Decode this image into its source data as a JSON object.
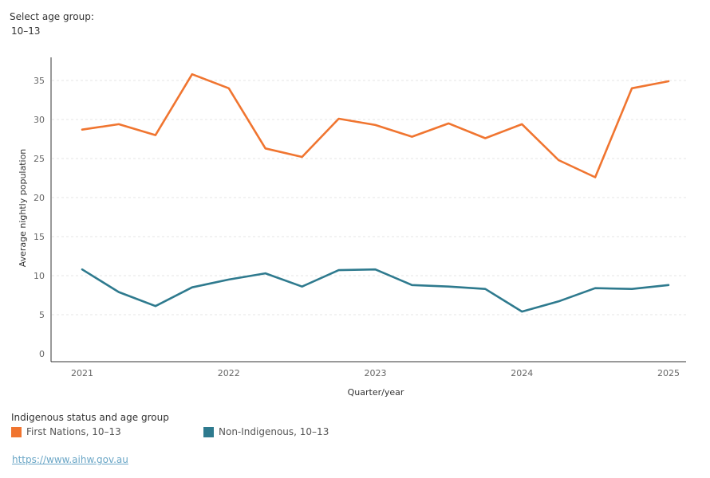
{
  "filter": {
    "label": "Select age group:",
    "value": "10–13"
  },
  "chart_data": {
    "type": "line",
    "xlabel": "Quarter/year",
    "ylabel": "Average nightly population",
    "ylim": [
      0,
      37
    ],
    "yticks": [
      0,
      5,
      10,
      15,
      20,
      25,
      30,
      35
    ],
    "xticks": [
      {
        "label": "2021",
        "index": 0
      },
      {
        "label": "2022",
        "index": 4
      },
      {
        "label": "2023",
        "index": 8
      },
      {
        "label": "2024",
        "index": 12
      },
      {
        "label": "2025",
        "index": 16
      }
    ],
    "grid": true,
    "legend_title": "Indigenous status and age group",
    "legend_position": "bottom-left",
    "series": [
      {
        "name": "First Nations, 10–13",
        "color": "#f07530",
        "values": [
          28.7,
          29.4,
          28.0,
          35.8,
          34.0,
          26.3,
          25.2,
          30.1,
          29.3,
          27.8,
          29.5,
          27.6,
          29.4,
          24.8,
          22.6,
          34.0,
          34.9
        ]
      },
      {
        "name": "Non-Indigenous, 10–13",
        "color": "#2e7a8e",
        "values": [
          10.8,
          7.9,
          6.1,
          8.5,
          9.5,
          10.3,
          8.6,
          10.7,
          10.8,
          8.8,
          8.6,
          8.3,
          5.4,
          6.7,
          8.4,
          8.3,
          8.8
        ]
      }
    ]
  },
  "source": {
    "text": "https://www.aihw.gov.au"
  }
}
